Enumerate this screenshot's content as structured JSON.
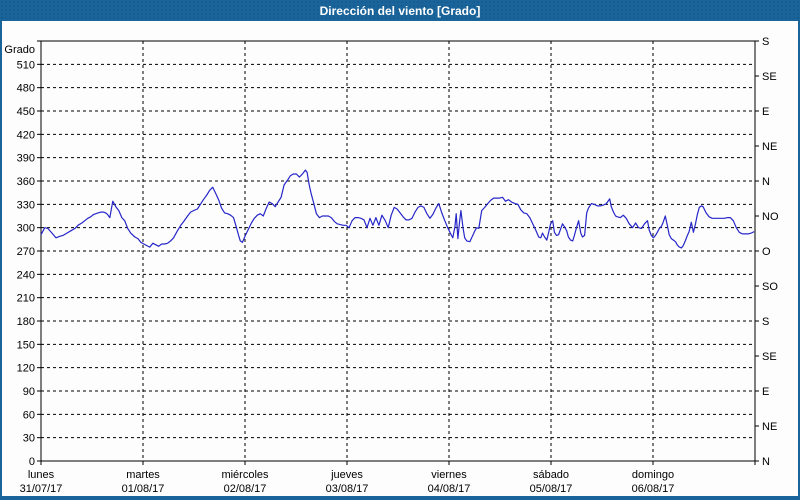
{
  "window": {
    "title": "Dirección del viento [Grado]"
  },
  "colors": {
    "titlebar_bg": "#1a649c",
    "panel_bg": "#fdfdfd",
    "grid": "#000000",
    "axis": "#000000",
    "series_line": "#2626c9",
    "title_text": "#ffffff"
  },
  "chart_data": {
    "type": "line",
    "title": "Dirección del viento [Grado]",
    "grid": "dashed, horizontal every 30 degrees, vertical at day boundaries",
    "legend": "none",
    "y_axis_left": {
      "label": "Grado",
      "min": 0,
      "max": 540,
      "tick_step": 30,
      "tick_labels": [
        "0",
        "30",
        "60",
        "90",
        "120",
        "150",
        "180",
        "210",
        "240",
        "270",
        "300",
        "330",
        "360",
        "390",
        "420",
        "450",
        "480",
        "510"
      ]
    },
    "y_axis_right": {
      "tick_step": 45,
      "labels_bottom_to_top": [
        "N",
        "NE",
        "E",
        "SE",
        "S",
        "SO",
        "O",
        "NO",
        "N",
        "NE",
        "E",
        "SE",
        "S"
      ]
    },
    "x_axis": {
      "unit": "hours",
      "min": 0,
      "max": 168,
      "days": [
        {
          "day": "lunes",
          "date": "31/07/17"
        },
        {
          "day": "martes",
          "date": "01/08/17"
        },
        {
          "day": "miércoles",
          "date": "02/08/17"
        },
        {
          "day": "jueves",
          "date": "03/08/17"
        },
        {
          "day": "viernes",
          "date": "04/08/17"
        },
        {
          "day": "sábado",
          "date": "05/08/17"
        },
        {
          "day": "domingo",
          "date": "06/08/17"
        }
      ]
    },
    "series": [
      {
        "name": "Dirección del viento",
        "color": "#2626c9",
        "points": [
          [
            0,
            291
          ],
          [
            0.9,
            300
          ],
          [
            1.6,
            299
          ],
          [
            2.6,
            293
          ],
          [
            3.5,
            287
          ],
          [
            4.5,
            289
          ],
          [
            5.2,
            290
          ],
          [
            6.1,
            293
          ],
          [
            7,
            296
          ],
          [
            8,
            299
          ],
          [
            8.7,
            303
          ],
          [
            9.6,
            306
          ],
          [
            10.3,
            309
          ],
          [
            11,
            312
          ],
          [
            11.7,
            314
          ],
          [
            12.4,
            317
          ],
          [
            13.4,
            319
          ],
          [
            14.1,
            320
          ],
          [
            14.8,
            320
          ],
          [
            15.5,
            318
          ],
          [
            16.2,
            313
          ],
          [
            16.9,
            334
          ],
          [
            17.6,
            327
          ],
          [
            18.3,
            322
          ],
          [
            19,
            313
          ],
          [
            19.7,
            309
          ],
          [
            20.4,
            299
          ],
          [
            21.1,
            293
          ],
          [
            22.1,
            288
          ],
          [
            22.8,
            286
          ],
          [
            23.5,
            281
          ],
          [
            24.2,
            279
          ],
          [
            24.9,
            277
          ],
          [
            25.6,
            275
          ],
          [
            26.3,
            280
          ],
          [
            27,
            278
          ],
          [
            27.7,
            276
          ],
          [
            28.4,
            279
          ],
          [
            29.1,
            279
          ],
          [
            29.8,
            280
          ],
          [
            30.5,
            283
          ],
          [
            31.2,
            287
          ],
          [
            32.1,
            296
          ],
          [
            32.9,
            303
          ],
          [
            33.6,
            308
          ],
          [
            34.5,
            315
          ],
          [
            35.2,
            320
          ],
          [
            35.9,
            322
          ],
          [
            36.8,
            324
          ],
          [
            37.5,
            330
          ],
          [
            38.2,
            336
          ],
          [
            39,
            342
          ],
          [
            39.7,
            348
          ],
          [
            40.4,
            352
          ],
          [
            41.1,
            344
          ],
          [
            41.8,
            336
          ],
          [
            42.5,
            325
          ],
          [
            43.2,
            319
          ],
          [
            43.9,
            318
          ],
          [
            44.6,
            316
          ],
          [
            45.3,
            313
          ],
          [
            46,
            300
          ],
          [
            46.5,
            290
          ],
          [
            46.9,
            283
          ],
          [
            47.4,
            281
          ],
          [
            48.1,
            290
          ],
          [
            48.8,
            298
          ],
          [
            49.5,
            306
          ],
          [
            50.2,
            312
          ],
          [
            50.9,
            316
          ],
          [
            51.6,
            318
          ],
          [
            52.3,
            315
          ],
          [
            53,
            325
          ],
          [
            53.7,
            333
          ],
          [
            54.4,
            331
          ],
          [
            55.1,
            327
          ],
          [
            55.8,
            333
          ],
          [
            56.5,
            339
          ],
          [
            57.2,
            355
          ],
          [
            58,
            361
          ],
          [
            58.7,
            367
          ],
          [
            59.4,
            369
          ],
          [
            60.1,
            369
          ],
          [
            60.8,
            365
          ],
          [
            61.5,
            369
          ],
          [
            62.2,
            374
          ],
          [
            62.6,
            371
          ],
          [
            63.1,
            355
          ],
          [
            63.6,
            343
          ],
          [
            64.1,
            333
          ],
          [
            64.8,
            318
          ],
          [
            65.5,
            313
          ],
          [
            66.2,
            315
          ],
          [
            66.9,
            315
          ],
          [
            67.6,
            315
          ],
          [
            68.3,
            313
          ],
          [
            69,
            308
          ],
          [
            69.7,
            305
          ],
          [
            70.4,
            304
          ],
          [
            71.1,
            303
          ],
          [
            71.8,
            303
          ],
          [
            72.5,
            300
          ],
          [
            73.2,
            309
          ],
          [
            73.9,
            313
          ],
          [
            74.6,
            313
          ],
          [
            75.3,
            312
          ],
          [
            76,
            310
          ],
          [
            76.7,
            300
          ],
          [
            77.4,
            312
          ],
          [
            78.1,
            303
          ],
          [
            78.8,
            313
          ],
          [
            79.5,
            303
          ],
          [
            80.2,
            316
          ],
          [
            81,
            309
          ],
          [
            81.7,
            300
          ],
          [
            82.4,
            316
          ],
          [
            83.1,
            326
          ],
          [
            83.8,
            324
          ],
          [
            84.5,
            319
          ],
          [
            85.2,
            314
          ],
          [
            85.9,
            310
          ],
          [
            86.6,
            310
          ],
          [
            87.3,
            312
          ],
          [
            88,
            320
          ],
          [
            88.7,
            326
          ],
          [
            89.4,
            328
          ],
          [
            90.1,
            326
          ],
          [
            90.8,
            318
          ],
          [
            91.5,
            312
          ],
          [
            92.2,
            317
          ],
          [
            92.9,
            325
          ],
          [
            93.6,
            331
          ],
          [
            94.3,
            319
          ],
          [
            95,
            309
          ],
          [
            95.7,
            300
          ],
          [
            96.4,
            292
          ],
          [
            96.9,
            287
          ],
          [
            97.4,
            302
          ],
          [
            97.7,
            318
          ],
          [
            98.1,
            286
          ],
          [
            98.5,
            308
          ],
          [
            98.8,
            322
          ],
          [
            99.3,
            300
          ],
          [
            99.7,
            287
          ],
          [
            100.2,
            283
          ],
          [
            100.9,
            282
          ],
          [
            101.6,
            290
          ],
          [
            102.1,
            296
          ],
          [
            102.5,
            300
          ],
          [
            103,
            299
          ],
          [
            103.7,
            322
          ],
          [
            104.4,
            326
          ],
          [
            105.1,
            331
          ],
          [
            105.8,
            335
          ],
          [
            106.5,
            338
          ],
          [
            107.2,
            338
          ],
          [
            107.9,
            338
          ],
          [
            108.6,
            339
          ],
          [
            109.3,
            334
          ],
          [
            110,
            336
          ],
          [
            110.7,
            333
          ],
          [
            111.5,
            331
          ],
          [
            112.2,
            330
          ],
          [
            112.9,
            323
          ],
          [
            113.6,
            319
          ],
          [
            114.3,
            318
          ],
          [
            115,
            313
          ],
          [
            115.7,
            305
          ],
          [
            116.4,
            297
          ],
          [
            117.1,
            288
          ],
          [
            117.6,
            287
          ],
          [
            118,
            293
          ],
          [
            118.5,
            288
          ],
          [
            119,
            284
          ],
          [
            119.4,
            293
          ],
          [
            119.9,
            305
          ],
          [
            120.4,
            309
          ],
          [
            120.8,
            294
          ],
          [
            121.3,
            290
          ],
          [
            121.8,
            291
          ],
          [
            122.3,
            299
          ],
          [
            122.7,
            305
          ],
          [
            123.2,
            301
          ],
          [
            123.7,
            296
          ],
          [
            124.1,
            288
          ],
          [
            124.6,
            284
          ],
          [
            125.1,
            283
          ],
          [
            125.5,
            290
          ],
          [
            126,
            300
          ],
          [
            126.5,
            309
          ],
          [
            127,
            293
          ],
          [
            127.4,
            288
          ],
          [
            127.9,
            290
          ],
          [
            128.4,
            319
          ],
          [
            128.8,
            325
          ],
          [
            129.5,
            331
          ],
          [
            130.2,
            330
          ],
          [
            130.9,
            328
          ],
          [
            131.6,
            328
          ],
          [
            132.3,
            329
          ],
          [
            133,
            331
          ],
          [
            133.8,
            337
          ],
          [
            134.2,
            327
          ],
          [
            134.7,
            320
          ],
          [
            135.2,
            315
          ],
          [
            135.6,
            314
          ],
          [
            136.3,
            313
          ],
          [
            137,
            316
          ],
          [
            137.7,
            312
          ],
          [
            138.4,
            305
          ],
          [
            139.2,
            300
          ],
          [
            139.9,
            306
          ],
          [
            140.6,
            300
          ],
          [
            141.3,
            299
          ],
          [
            142,
            305
          ],
          [
            142.7,
            309
          ],
          [
            143.1,
            297
          ],
          [
            143.6,
            290
          ],
          [
            144.1,
            287
          ],
          [
            144.6,
            290
          ],
          [
            145,
            294
          ],
          [
            145.5,
            299
          ],
          [
            146,
            302
          ],
          [
            146.4,
            307
          ],
          [
            146.9,
            315
          ],
          [
            147.4,
            302
          ],
          [
            147.8,
            291
          ],
          [
            148.3,
            286
          ],
          [
            148.8,
            284
          ],
          [
            149.3,
            282
          ],
          [
            149.7,
            278
          ],
          [
            150.2,
            275
          ],
          [
            150.7,
            274
          ],
          [
            151.1,
            277
          ],
          [
            151.6,
            283
          ],
          [
            152.1,
            290
          ],
          [
            152.5,
            295
          ],
          [
            153,
            307
          ],
          [
            153.5,
            294
          ],
          [
            154,
            305
          ],
          [
            154.4,
            316
          ],
          [
            154.9,
            326
          ],
          [
            155.4,
            328
          ],
          [
            155.8,
            327
          ],
          [
            156.5,
            319
          ],
          [
            157.2,
            314
          ],
          [
            157.9,
            312
          ],
          [
            158.6,
            312
          ],
          [
            159.3,
            312
          ],
          [
            160,
            312
          ],
          [
            160.8,
            312
          ],
          [
            161.5,
            313
          ],
          [
            162.2,
            313
          ],
          [
            162.9,
            309
          ],
          [
            163.6,
            300
          ],
          [
            164.3,
            294
          ],
          [
            165,
            292
          ],
          [
            165.7,
            292
          ],
          [
            166.4,
            292
          ],
          [
            167.1,
            293
          ],
          [
            167.8,
            295
          ]
        ]
      }
    ]
  }
}
